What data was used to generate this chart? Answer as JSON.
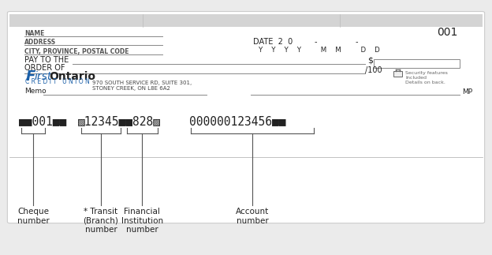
{
  "bg_color": "#ebebeb",
  "cheque_bg": "#ffffff",
  "cheque_border": "#cccccc",
  "name_label": "NAME",
  "address_label": "ADDRESS",
  "city_label": "CITY, PROVINCE, POSTAL CODE",
  "cheque_number": "001",
  "pay_to_label": "PAY TO THE",
  "dollar_sign": "$",
  "order_of": "ORDER OF",
  "per100_label": "/100",
  "security_label": "Security features\nIncluded\nDetails on back.",
  "memo_label": "Memo",
  "mp_label": "MP",
  "micr_cheque": "■■001■■",
  "micr_transit": "▨12345■■828▨",
  "micr_account": "000000123456■■",
  "label_cheque": "Cheque\nnumber",
  "label_transit": "* Transit\n(Branch)\nnumber",
  "label_financial": "Financial\nInstitution\nnumber",
  "label_account": "Account\nnumber",
  "line_color": "#555555",
  "text_color": "#222222",
  "blue_color": "#1a5fa8",
  "gray_color": "#888888",
  "label_fontsize": 7.5,
  "micr_fontsize": 10.5,
  "top_bar_color": "#d4d4d4",
  "credit_union_text": "C R E D I T   U N I O N"
}
